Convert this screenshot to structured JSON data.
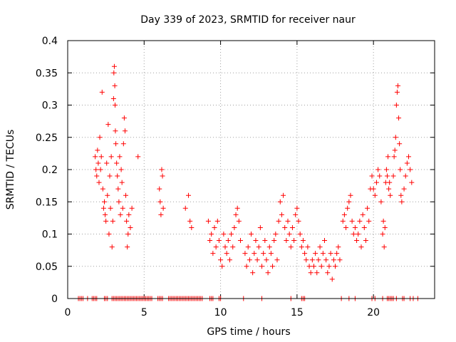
{
  "chart_data": {
    "type": "scatter",
    "title": "Day 339 of 2023, SRMTID for receiver naur",
    "xlabel": "GPS time / hours",
    "ylabel": "SRMTID / TECUs",
    "xlim": [
      0,
      24
    ],
    "ylim": [
      0,
      0.4
    ],
    "xticks": [
      0,
      5,
      10,
      15,
      20
    ],
    "xtick_labels": [
      "0",
      "5",
      "10",
      "15",
      "20"
    ],
    "yticks": [
      0,
      0.05,
      0.1,
      0.15,
      0.2,
      0.25,
      0.3,
      0.35,
      0.4
    ],
    "ytick_labels": [
      "0",
      "0.05",
      "0.1",
      "0.15",
      "0.2",
      "0.25",
      "0.3",
      "0.35",
      "0.4"
    ],
    "grid": true,
    "marker": "+",
    "color": "#ff0000",
    "series": [
      {
        "name": "SRMTID",
        "points": [
          [
            1.8,
            0.22
          ],
          [
            1.85,
            0.2
          ],
          [
            1.9,
            0.19
          ],
          [
            1.95,
            0.23
          ],
          [
            2.0,
            0.21
          ],
          [
            2.05,
            0.18
          ],
          [
            2.1,
            0.25
          ],
          [
            2.15,
            0.2
          ],
          [
            2.2,
            0.22
          ],
          [
            2.25,
            0.32
          ],
          [
            2.3,
            0.17
          ],
          [
            2.35,
            0.14
          ],
          [
            2.4,
            0.15
          ],
          [
            2.45,
            0.13
          ],
          [
            2.5,
            0.12
          ],
          [
            2.55,
            0.21
          ],
          [
            2.6,
            0.16
          ],
          [
            2.65,
            0.27
          ],
          [
            2.7,
            0.1
          ],
          [
            2.75,
            0.19
          ],
          [
            2.8,
            0.14
          ],
          [
            2.85,
            0.22
          ],
          [
            2.9,
            0.08
          ],
          [
            2.95,
            0.12
          ],
          [
            3.0,
            0.31
          ],
          [
            3.02,
            0.35
          ],
          [
            3.05,
            0.36
          ],
          [
            3.08,
            0.33
          ],
          [
            3.1,
            0.3
          ],
          [
            3.12,
            0.26
          ],
          [
            3.15,
            0.24
          ],
          [
            3.2,
            0.21
          ],
          [
            3.25,
            0.19
          ],
          [
            3.3,
            0.17
          ],
          [
            3.35,
            0.15
          ],
          [
            3.4,
            0.22
          ],
          [
            3.45,
            0.13
          ],
          [
            3.5,
            0.2
          ],
          [
            3.55,
            0.18
          ],
          [
            3.6,
            0.14
          ],
          [
            3.65,
            0.24
          ],
          [
            3.7,
            0.28
          ],
          [
            3.75,
            0.26
          ],
          [
            3.8,
            0.16
          ],
          [
            3.85,
            0.12
          ],
          [
            3.9,
            0.08
          ],
          [
            3.95,
            0.1
          ],
          [
            4.0,
            0.13
          ],
          [
            4.1,
            0.11
          ],
          [
            4.2,
            0.14
          ],
          [
            4.6,
            0.22
          ],
          [
            6.0,
            0.17
          ],
          [
            6.05,
            0.15
          ],
          [
            6.1,
            0.13
          ],
          [
            6.15,
            0.2
          ],
          [
            6.2,
            0.19
          ],
          [
            6.25,
            0.14
          ],
          [
            7.7,
            0.14
          ],
          [
            7.9,
            0.16
          ],
          [
            8.0,
            0.12
          ],
          [
            8.1,
            0.11
          ],
          [
            9.2,
            0.12
          ],
          [
            9.3,
            0.09
          ],
          [
            9.4,
            0.1
          ],
          [
            9.5,
            0.07
          ],
          [
            9.6,
            0.11
          ],
          [
            9.7,
            0.08
          ],
          [
            9.8,
            0.12
          ],
          [
            9.9,
            0.09
          ],
          [
            10.0,
            0.06
          ],
          [
            10.1,
            0.05
          ],
          [
            10.2,
            0.1
          ],
          [
            10.3,
            0.08
          ],
          [
            10.4,
            0.07
          ],
          [
            10.5,
            0.09
          ],
          [
            10.6,
            0.06
          ],
          [
            10.7,
            0.1
          ],
          [
            10.8,
            0.08
          ],
          [
            10.9,
            0.11
          ],
          [
            11.0,
            0.13
          ],
          [
            11.1,
            0.14
          ],
          [
            11.2,
            0.12
          ],
          [
            11.3,
            0.09
          ],
          [
            11.6,
            0.07
          ],
          [
            11.7,
            0.05
          ],
          [
            11.8,
            0.08
          ],
          [
            11.9,
            0.06
          ],
          [
            12.0,
            0.1
          ],
          [
            12.1,
            0.04
          ],
          [
            12.2,
            0.07
          ],
          [
            12.3,
            0.09
          ],
          [
            12.4,
            0.06
          ],
          [
            12.5,
            0.08
          ],
          [
            12.6,
            0.11
          ],
          [
            12.7,
            0.05
          ],
          [
            12.8,
            0.07
          ],
          [
            12.9,
            0.09
          ],
          [
            13.0,
            0.06
          ],
          [
            13.1,
            0.04
          ],
          [
            13.2,
            0.08
          ],
          [
            13.3,
            0.07
          ],
          [
            13.4,
            0.05
          ],
          [
            13.5,
            0.09
          ],
          [
            13.6,
            0.1
          ],
          [
            13.7,
            0.06
          ],
          [
            13.8,
            0.12
          ],
          [
            13.9,
            0.15
          ],
          [
            14.0,
            0.13
          ],
          [
            14.1,
            0.16
          ],
          [
            14.2,
            0.11
          ],
          [
            14.3,
            0.09
          ],
          [
            14.4,
            0.12
          ],
          [
            14.5,
            0.1
          ],
          [
            14.6,
            0.08
          ],
          [
            14.7,
            0.11
          ],
          [
            14.8,
            0.09
          ],
          [
            14.9,
            0.13
          ],
          [
            15.0,
            0.14
          ],
          [
            15.1,
            0.12
          ],
          [
            15.2,
            0.1
          ],
          [
            15.3,
            0.08
          ],
          [
            15.4,
            0.09
          ],
          [
            15.5,
            0.07
          ],
          [
            15.6,
            0.06
          ],
          [
            15.7,
            0.08
          ],
          [
            15.8,
            0.05
          ],
          [
            15.9,
            0.04
          ],
          [
            16.0,
            0.06
          ],
          [
            16.1,
            0.05
          ],
          [
            16.2,
            0.07
          ],
          [
            16.3,
            0.04
          ],
          [
            16.4,
            0.06
          ],
          [
            16.5,
            0.08
          ],
          [
            16.6,
            0.05
          ],
          [
            16.7,
            0.07
          ],
          [
            16.8,
            0.09
          ],
          [
            16.9,
            0.06
          ],
          [
            17.0,
            0.04
          ],
          [
            17.1,
            0.05
          ],
          [
            17.2,
            0.07
          ],
          [
            17.3,
            0.03
          ],
          [
            17.4,
            0.06
          ],
          [
            17.5,
            0.05
          ],
          [
            17.6,
            0.07
          ],
          [
            17.7,
            0.08
          ],
          [
            17.8,
            0.06
          ],
          [
            18.0,
            0.12
          ],
          [
            18.1,
            0.13
          ],
          [
            18.2,
            0.11
          ],
          [
            18.3,
            0.14
          ],
          [
            18.4,
            0.15
          ],
          [
            18.5,
            0.16
          ],
          [
            18.6,
            0.12
          ],
          [
            18.7,
            0.1
          ],
          [
            18.8,
            0.11
          ],
          [
            18.9,
            0.09
          ],
          [
            19.0,
            0.1
          ],
          [
            19.1,
            0.12
          ],
          [
            19.2,
            0.08
          ],
          [
            19.3,
            0.13
          ],
          [
            19.4,
            0.11
          ],
          [
            19.5,
            0.09
          ],
          [
            19.6,
            0.14
          ],
          [
            19.7,
            0.12
          ],
          [
            19.8,
            0.17
          ],
          [
            19.9,
            0.19
          ],
          [
            20.0,
            0.17
          ],
          [
            20.1,
            0.16
          ],
          [
            20.2,
            0.18
          ],
          [
            20.3,
            0.2
          ],
          [
            20.4,
            0.19
          ],
          [
            20.5,
            0.15
          ],
          [
            20.6,
            0.1
          ],
          [
            20.65,
            0.12
          ],
          [
            20.7,
            0.08
          ],
          [
            20.75,
            0.11
          ],
          [
            20.8,
            0.18
          ],
          [
            20.85,
            0.2
          ],
          [
            20.9,
            0.19
          ],
          [
            20.95,
            0.22
          ],
          [
            21.0,
            0.17
          ],
          [
            21.05,
            0.18
          ],
          [
            21.1,
            0.16
          ],
          [
            21.3,
            0.19
          ],
          [
            21.35,
            0.22
          ],
          [
            21.4,
            0.23
          ],
          [
            21.45,
            0.25
          ],
          [
            21.5,
            0.3
          ],
          [
            21.55,
            0.32
          ],
          [
            21.6,
            0.33
          ],
          [
            21.65,
            0.28
          ],
          [
            21.7,
            0.24
          ],
          [
            21.75,
            0.2
          ],
          [
            21.8,
            0.16
          ],
          [
            21.85,
            0.15
          ],
          [
            22.0,
            0.17
          ],
          [
            22.1,
            0.19
          ],
          [
            22.2,
            0.21
          ],
          [
            22.3,
            0.22
          ],
          [
            22.4,
            0.2
          ],
          [
            22.5,
            0.18
          ],
          [
            0.7,
            0
          ],
          [
            0.8,
            0
          ],
          [
            0.9,
            0
          ],
          [
            1.0,
            0
          ],
          [
            1.3,
            0
          ],
          [
            1.6,
            0
          ],
          [
            1.7,
            0
          ],
          [
            1.8,
            0
          ],
          [
            1.9,
            0
          ],
          [
            2.4,
            0
          ],
          [
            2.5,
            0
          ],
          [
            2.6,
            0
          ],
          [
            2.9,
            0
          ],
          [
            3.0,
            0
          ],
          [
            3.1,
            0
          ],
          [
            3.2,
            0
          ],
          [
            3.3,
            0
          ],
          [
            3.4,
            0
          ],
          [
            3.5,
            0
          ],
          [
            3.6,
            0
          ],
          [
            3.7,
            0
          ],
          [
            3.8,
            0
          ],
          [
            3.9,
            0
          ],
          [
            4.0,
            0
          ],
          [
            4.1,
            0
          ],
          [
            4.2,
            0
          ],
          [
            4.3,
            0
          ],
          [
            4.4,
            0
          ],
          [
            4.5,
            0
          ],
          [
            4.6,
            0
          ],
          [
            4.7,
            0
          ],
          [
            4.8,
            0
          ],
          [
            4.9,
            0
          ],
          [
            5.0,
            0
          ],
          [
            5.1,
            0
          ],
          [
            5.2,
            0
          ],
          [
            5.3,
            0
          ],
          [
            5.4,
            0
          ],
          [
            5.5,
            0
          ],
          [
            5.9,
            0
          ],
          [
            6.0,
            0
          ],
          [
            6.1,
            0
          ],
          [
            6.2,
            0
          ],
          [
            6.6,
            0
          ],
          [
            6.7,
            0
          ],
          [
            6.8,
            0
          ],
          [
            6.9,
            0
          ],
          [
            7.0,
            0
          ],
          [
            7.1,
            0
          ],
          [
            7.2,
            0
          ],
          [
            7.3,
            0
          ],
          [
            7.4,
            0
          ],
          [
            7.5,
            0
          ],
          [
            7.6,
            0
          ],
          [
            7.7,
            0
          ],
          [
            7.8,
            0
          ],
          [
            7.9,
            0
          ],
          [
            8.0,
            0
          ],
          [
            8.1,
            0
          ],
          [
            8.2,
            0
          ],
          [
            8.3,
            0
          ],
          [
            8.4,
            0
          ],
          [
            8.5,
            0
          ],
          [
            8.6,
            0
          ],
          [
            8.7,
            0
          ],
          [
            8.8,
            0
          ],
          [
            9.3,
            0
          ],
          [
            9.4,
            0
          ],
          [
            9.5,
            0
          ],
          [
            9.9,
            0
          ],
          [
            10.0,
            0
          ],
          [
            11.5,
            0
          ],
          [
            12.7,
            0
          ],
          [
            14.6,
            0
          ],
          [
            15.3,
            0
          ],
          [
            15.4,
            0
          ],
          [
            15.5,
            0
          ],
          [
            17.9,
            0
          ],
          [
            18.4,
            0
          ],
          [
            18.8,
            0
          ],
          [
            19.9,
            0
          ],
          [
            20.1,
            0
          ],
          [
            20.6,
            0
          ],
          [
            20.9,
            0
          ],
          [
            21.0,
            0
          ],
          [
            21.1,
            0
          ],
          [
            21.2,
            0
          ],
          [
            21.3,
            0
          ],
          [
            21.5,
            0
          ],
          [
            21.9,
            0
          ],
          [
            22.0,
            0
          ],
          [
            22.4,
            0
          ],
          [
            22.6,
            0
          ],
          [
            22.9,
            0
          ]
        ]
      }
    ]
  }
}
